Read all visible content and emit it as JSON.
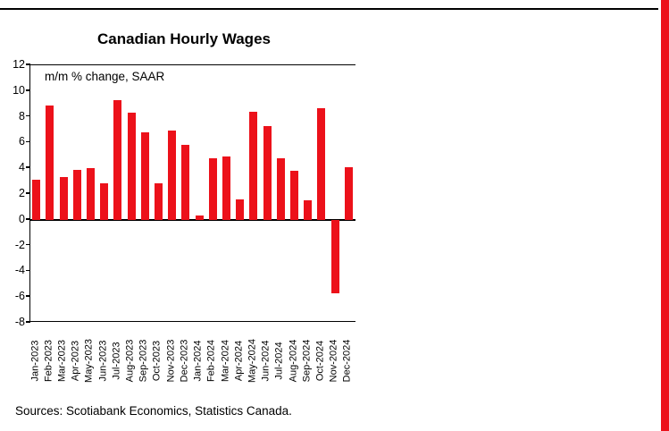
{
  "page": {
    "title": "Canadian Hourly Wages",
    "subtitle": "m/m % change, SAAR",
    "source": "Sources: Scotiabank Economics, Statistics Canada."
  },
  "colors": {
    "bar": "#EC111A",
    "accent_stripe": "#EC111A",
    "axis": "#000000"
  },
  "chart_data": {
    "type": "bar",
    "title": "Canadian Hourly Wages",
    "subtitle": "m/m % change, SAAR",
    "categories": [
      "Jan-2023",
      "Feb-2023",
      "Mar-2023",
      "Apr-2023",
      "May-2023",
      "Jun-2023",
      "Jul-2023",
      "Aug-2023",
      "Sep-2023",
      "Oct-2023",
      "Nov-2023",
      "Dec-2023",
      "Jan-2024",
      "Feb-2024",
      "Mar-2024",
      "Apr-2024",
      "May-2024",
      "Jun-2024",
      "Jul-2024",
      "Aug-2024",
      "Sep-2024",
      "Oct-2024",
      "Nov-2024",
      "Dec-2024"
    ],
    "values": [
      3.1,
      8.9,
      3.3,
      3.9,
      4.0,
      2.8,
      9.3,
      8.3,
      6.8,
      2.8,
      6.9,
      5.8,
      0.3,
      4.8,
      4.9,
      1.6,
      8.4,
      7.3,
      4.8,
      3.8,
      1.5,
      8.7,
      -5.7,
      4.1
    ],
    "ylabel": "",
    "xlabel": "",
    "ylim": [
      -8,
      12
    ],
    "ytick_step": 2,
    "grid": false,
    "legend": false,
    "bar_color": "#EC111A"
  }
}
